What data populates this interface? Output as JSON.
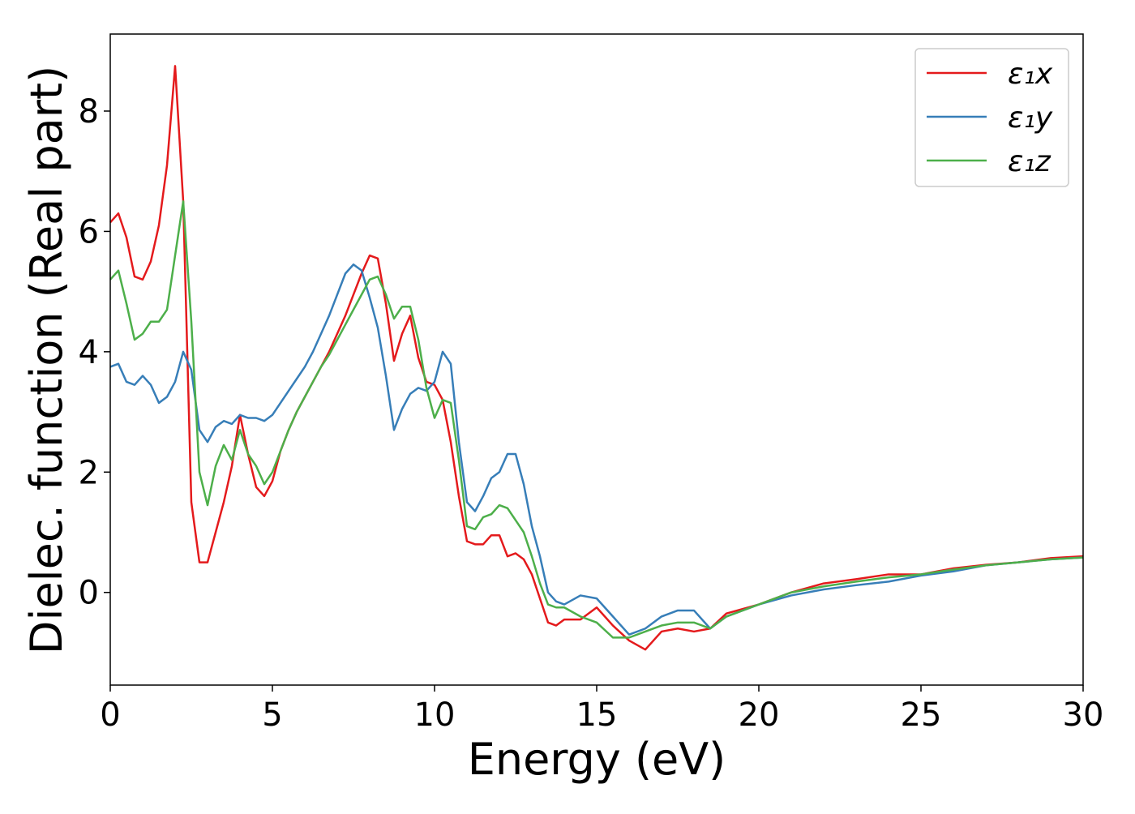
{
  "chart_data": {
    "type": "line",
    "xlabel": "Energy (eV)",
    "ylabel": "Dielec. function (Real part)",
    "x": [
      0,
      0.25,
      0.5,
      0.75,
      1,
      1.25,
      1.5,
      1.75,
      2,
      2.25,
      2.5,
      2.75,
      3,
      3.25,
      3.5,
      3.75,
      4,
      4.25,
      4.5,
      4.75,
      5,
      5.25,
      5.5,
      5.75,
      6,
      6.25,
      6.5,
      6.75,
      7,
      7.25,
      7.5,
      7.75,
      8,
      8.25,
      8.5,
      8.75,
      9,
      9.25,
      9.5,
      9.75,
      10,
      10.25,
      10.5,
      10.75,
      11,
      11.25,
      11.5,
      11.75,
      12,
      12.25,
      12.5,
      12.75,
      13,
      13.25,
      13.5,
      13.75,
      14,
      14.5,
      15,
      15.5,
      16,
      16.5,
      17,
      17.5,
      18,
      18.5,
      19,
      20,
      21,
      22,
      23,
      24,
      25,
      26,
      27,
      28,
      29,
      30
    ],
    "series": [
      {
        "name": "ε₁x",
        "color": "#e41a1c",
        "values": [
          6.15,
          6.3,
          5.9,
          5.25,
          5.2,
          5.5,
          6.1,
          7.1,
          8.75,
          6.5,
          1.5,
          0.5,
          0.5,
          1.0,
          1.5,
          2.1,
          2.95,
          2.3,
          1.75,
          1.6,
          1.85,
          2.35,
          2.7,
          3.0,
          3.25,
          3.5,
          3.75,
          4.0,
          4.3,
          4.6,
          4.95,
          5.3,
          5.6,
          5.55,
          4.8,
          3.85,
          4.3,
          4.6,
          3.9,
          3.5,
          3.45,
          3.2,
          2.5,
          1.6,
          0.85,
          0.8,
          0.8,
          0.95,
          0.95,
          0.6,
          0.65,
          0.55,
          0.3,
          -0.1,
          -0.5,
          -0.55,
          -0.45,
          -0.45,
          -0.25,
          -0.55,
          -0.8,
          -0.95,
          -0.65,
          -0.6,
          -0.65,
          -0.6,
          -0.35,
          -0.2,
          0.0,
          0.15,
          0.22,
          0.3,
          0.3,
          0.4,
          0.46,
          0.5,
          0.57,
          0.6
        ]
      },
      {
        "name": "ε₁y",
        "color": "#377eb8",
        "values": [
          3.75,
          3.8,
          3.5,
          3.45,
          3.6,
          3.45,
          3.15,
          3.25,
          3.5,
          4.0,
          3.7,
          2.7,
          2.5,
          2.75,
          2.85,
          2.8,
          2.95,
          2.9,
          2.9,
          2.85,
          2.95,
          3.15,
          3.35,
          3.55,
          3.75,
          4.0,
          4.3,
          4.6,
          4.95,
          5.3,
          5.45,
          5.35,
          4.9,
          4.4,
          3.6,
          2.7,
          3.05,
          3.3,
          3.4,
          3.35,
          3.5,
          4.0,
          3.8,
          2.5,
          1.5,
          1.35,
          1.6,
          1.9,
          2.0,
          2.3,
          2.3,
          1.8,
          1.1,
          0.6,
          0.0,
          -0.15,
          -0.2,
          -0.05,
          -0.1,
          -0.4,
          -0.7,
          -0.6,
          -0.4,
          -0.3,
          -0.3,
          -0.6,
          -0.4,
          -0.2,
          -0.05,
          0.05,
          0.12,
          0.18,
          0.28,
          0.35,
          0.45,
          0.5,
          0.55,
          0.58
        ]
      },
      {
        "name": "ε₁z",
        "color": "#4daf4a",
        "values": [
          5.2,
          5.35,
          4.8,
          4.2,
          4.3,
          4.5,
          4.5,
          4.7,
          5.6,
          6.5,
          4.5,
          2.0,
          1.45,
          2.1,
          2.45,
          2.2,
          2.7,
          2.3,
          2.1,
          1.8,
          2.0,
          2.35,
          2.7,
          3.0,
          3.25,
          3.5,
          3.75,
          3.95,
          4.2,
          4.45,
          4.7,
          4.95,
          5.2,
          5.25,
          4.95,
          4.55,
          4.75,
          4.75,
          4.2,
          3.4,
          2.9,
          3.2,
          3.15,
          2.2,
          1.1,
          1.05,
          1.25,
          1.3,
          1.45,
          1.4,
          1.2,
          1.0,
          0.6,
          0.15,
          -0.2,
          -0.25,
          -0.25,
          -0.4,
          -0.5,
          -0.75,
          -0.75,
          -0.65,
          -0.55,
          -0.5,
          -0.5,
          -0.6,
          -0.4,
          -0.2,
          0.0,
          0.1,
          0.18,
          0.25,
          0.3,
          0.38,
          0.45,
          0.5,
          0.55,
          0.58
        ]
      }
    ],
    "xlim": [
      0,
      30
    ],
    "ylim": [
      -1.54,
      9.28
    ],
    "xticks": [
      0,
      5,
      10,
      15,
      20,
      25,
      30
    ],
    "yticks": [
      0,
      2,
      4,
      6,
      8
    ],
    "legend": "upper right"
  }
}
